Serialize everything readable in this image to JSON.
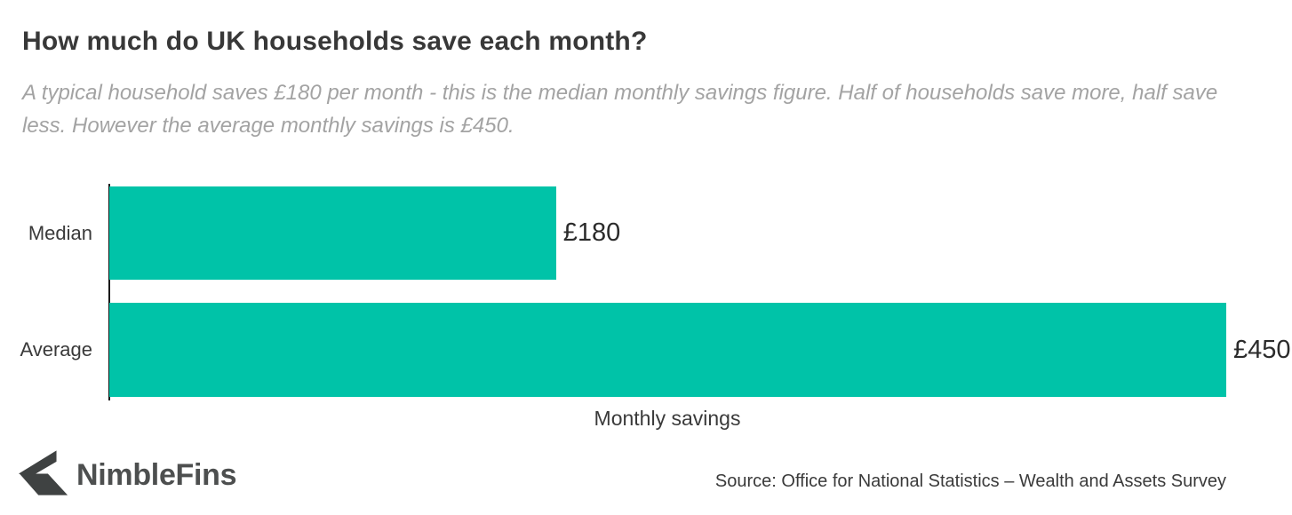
{
  "header": {
    "title": "How much do UK households save each month?",
    "subtitle": "A typical household saves £180 per month - this is the median monthly savings figure. Half of households save more, half save less. However the average monthly savings is £450."
  },
  "chart_data": {
    "type": "bar",
    "orientation": "horizontal",
    "categories": [
      "Median",
      "Average"
    ],
    "values": [
      180,
      450
    ],
    "value_labels": [
      "£180",
      "£450"
    ],
    "series_name": "Monthly savings",
    "xlabel": "Monthly savings",
    "xlim": [
      0,
      450
    ],
    "grid": false,
    "legend": "none",
    "bar_color": "#00c3a8"
  },
  "footer": {
    "brand": "NimbleFins",
    "logo_icon": "nimblefins-fin-arrow-icon",
    "source": "Source: Office for National Statistics – Wealth and Assets Survey"
  },
  "colors": {
    "bar": "#00c3a8",
    "title_text": "#383838",
    "subtitle_text": "#a3a3a3",
    "axis_line": "#1a1a1a",
    "value_text": "#2b2b2b",
    "brand_text": "#4d4f4f",
    "background": "#ffffff"
  }
}
